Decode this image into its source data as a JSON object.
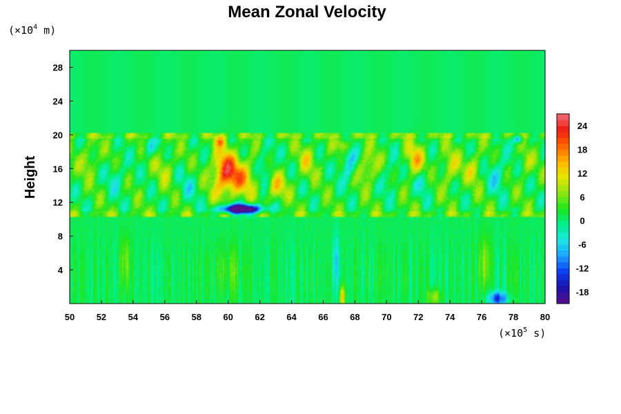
{
  "chart_data": {
    "type": "heatmap",
    "title": "Mean Zonal Velocity",
    "ylabel": "Height",
    "y_unit": {
      "prefix": "(×10",
      "exponent": "4",
      "suffix": " m)"
    },
    "x_unit": {
      "prefix": "(×10",
      "exponent": "5",
      "suffix": " s)"
    },
    "xlim": [
      50,
      80
    ],
    "ylim": [
      0,
      30
    ],
    "x_ticks": [
      50,
      52,
      54,
      56,
      58,
      60,
      62,
      64,
      66,
      68,
      70,
      72,
      74,
      76,
      78,
      80
    ],
    "y_ticks": [
      4,
      8,
      12,
      16,
      20,
      24,
      28
    ],
    "colorbar": {
      "range": [
        -21,
        27
      ],
      "ticks": [
        24,
        18,
        12,
        6,
        0,
        -6,
        -12,
        -18
      ],
      "colormap": [
        "#5a0f8a",
        "#1a14a8",
        "#0a3cf0",
        "#1ea0ff",
        "#1ee6e6",
        "#00f08c",
        "#1ee61e",
        "#8ce614",
        "#e6e600",
        "#ffb400",
        "#ff6400",
        "#f01e14",
        "#f06e78"
      ]
    },
    "features": [
      {
        "x": 59.8,
        "y": 15.5,
        "sx": 0.8,
        "sy": 2.6,
        "v": 18
      },
      {
        "x": 61.0,
        "y": 15.0,
        "sx": 0.9,
        "sy": 2.2,
        "v": 10
      },
      {
        "x": 59.5,
        "y": 19.2,
        "sx": 0.35,
        "sy": 0.6,
        "v": 10
      },
      {
        "x": 60.8,
        "y": 11.2,
        "sx": 1.3,
        "sy": 0.55,
        "v": -33
      },
      {
        "x": 62.3,
        "y": 16.0,
        "sx": 0.5,
        "sy": 2.5,
        "v": -7
      },
      {
        "x": 63.0,
        "y": 13.8,
        "sx": 0.7,
        "sy": 1.6,
        "v": 9
      },
      {
        "x": 56.0,
        "y": 16.0,
        "sx": 0.6,
        "sy": 2.0,
        "v": 5
      },
      {
        "x": 55.0,
        "y": 18.5,
        "sx": 0.4,
        "sy": 1.0,
        "v": -8
      },
      {
        "x": 51.2,
        "y": 17.0,
        "sx": 0.5,
        "sy": 1.8,
        "v": 6
      },
      {
        "x": 53.0,
        "y": 15.0,
        "sx": 0.6,
        "sy": 2.0,
        "v": -5
      },
      {
        "x": 57.5,
        "y": 14.0,
        "sx": 0.7,
        "sy": 2.0,
        "v": -4
      },
      {
        "x": 65.0,
        "y": 17.0,
        "sx": 0.6,
        "sy": 2.0,
        "v": 6
      },
      {
        "x": 67.3,
        "y": 18.8,
        "sx": 0.4,
        "sy": 0.8,
        "v": 9
      },
      {
        "x": 67.6,
        "y": 16.5,
        "sx": 0.5,
        "sy": 2.0,
        "v": -10
      },
      {
        "x": 68.8,
        "y": 16.0,
        "sx": 0.7,
        "sy": 1.8,
        "v": 8
      },
      {
        "x": 70.2,
        "y": 15.0,
        "sx": 0.6,
        "sy": 2.0,
        "v": -5
      },
      {
        "x": 71.8,
        "y": 17.0,
        "sx": 0.6,
        "sy": 2.0,
        "v": 10
      },
      {
        "x": 72.3,
        "y": 14.5,
        "sx": 0.5,
        "sy": 1.5,
        "v": -6
      },
      {
        "x": 74.0,
        "y": 16.0,
        "sx": 0.6,
        "sy": 2.0,
        "v": 7
      },
      {
        "x": 75.5,
        "y": 16.0,
        "sx": 0.5,
        "sy": 1.8,
        "v": 7
      },
      {
        "x": 77.0,
        "y": 15.5,
        "sx": 0.6,
        "sy": 2.2,
        "v": -7
      },
      {
        "x": 78.3,
        "y": 19.5,
        "sx": 0.3,
        "sy": 0.5,
        "v": -14
      },
      {
        "x": 78.8,
        "y": 16.5,
        "sx": 0.4,
        "sy": 1.5,
        "v": 5
      },
      {
        "x": 77.0,
        "y": 0.6,
        "sx": 0.6,
        "sy": 0.8,
        "v": -14
      },
      {
        "x": 67.2,
        "y": 0.8,
        "sx": 0.15,
        "sy": 1.2,
        "v": 14
      },
      {
        "x": 66.8,
        "y": 5.0,
        "sx": 0.2,
        "sy": 3.0,
        "v": -6
      },
      {
        "x": 76.2,
        "y": 5.0,
        "sx": 0.4,
        "sy": 3.0,
        "v": 5
      },
      {
        "x": 53.5,
        "y": 5.0,
        "sx": 0.3,
        "sy": 3.0,
        "v": 5
      },
      {
        "x": 73.0,
        "y": 0.8,
        "sx": 0.4,
        "sy": 1.0,
        "v": 8
      },
      {
        "x": 60.0,
        "y": 4.0,
        "sx": 1.0,
        "sy": 3.0,
        "v": 3
      }
    ]
  }
}
